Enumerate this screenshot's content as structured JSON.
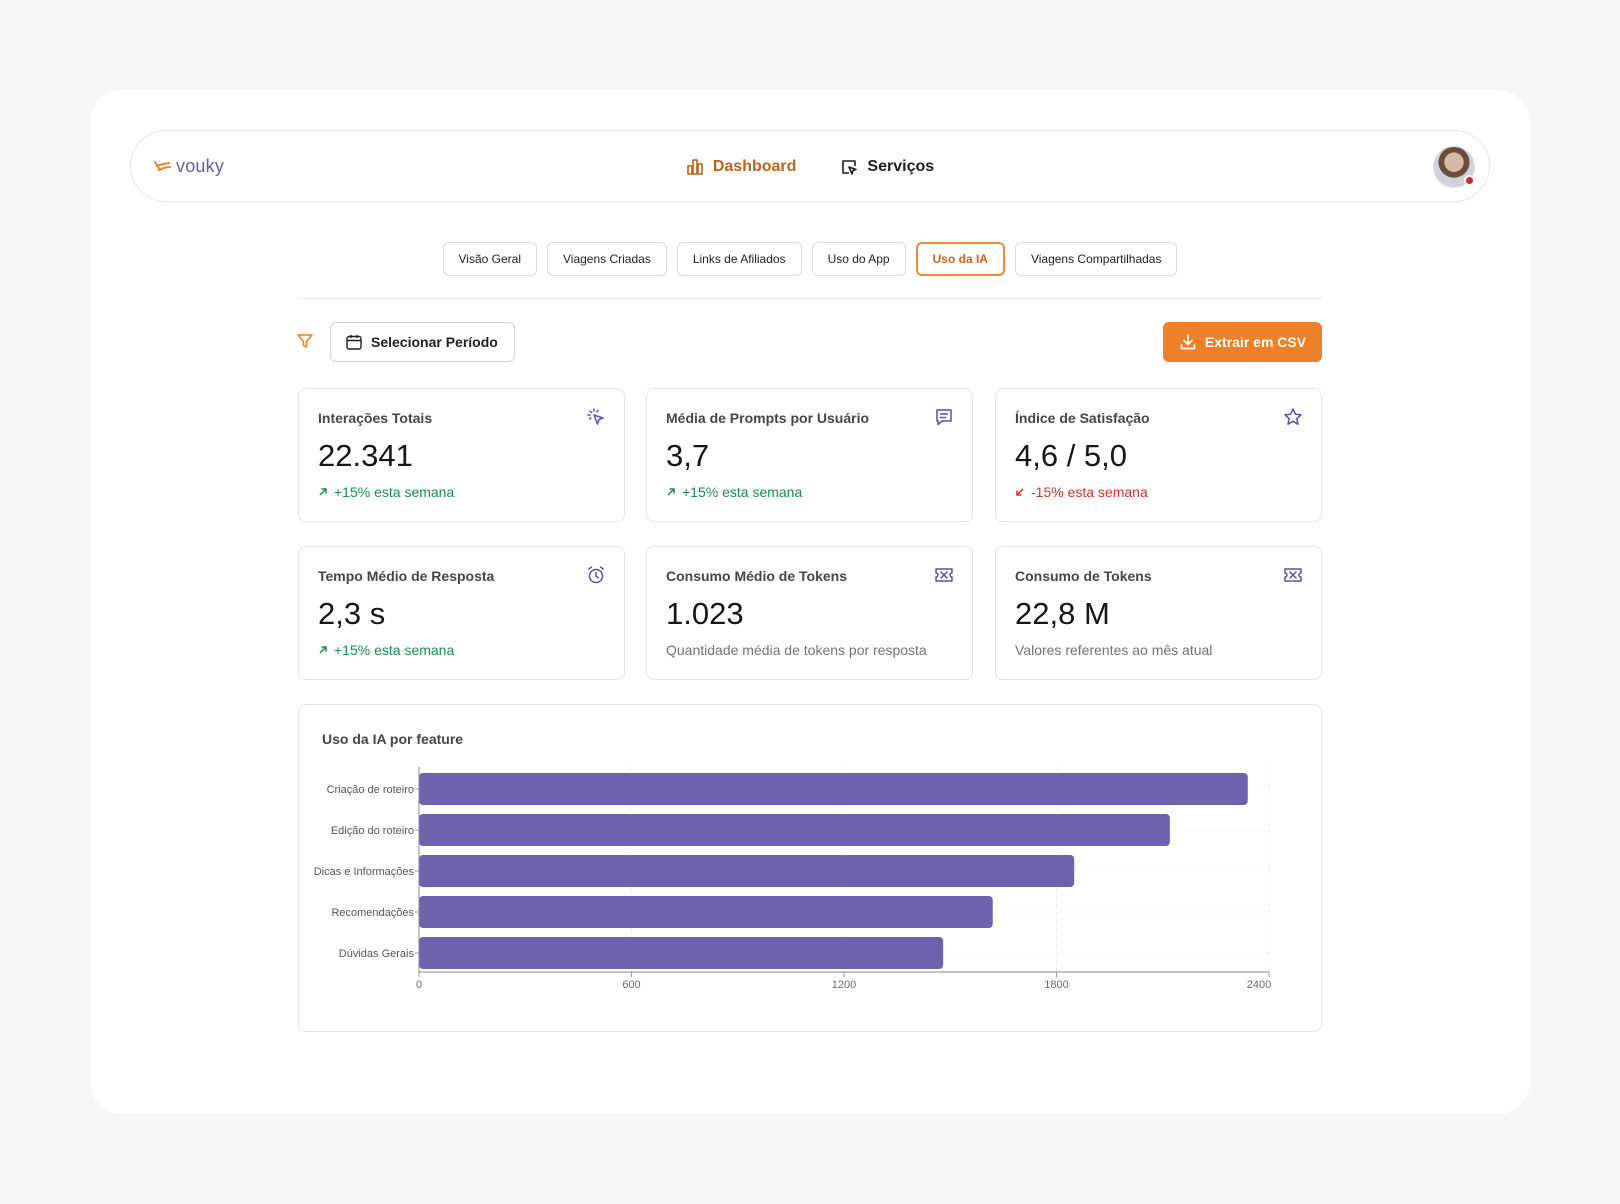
{
  "app": {
    "logo_text": "vouky"
  },
  "nav": {
    "items": [
      {
        "label": "Dashboard",
        "active": true
      },
      {
        "label": "Serviços",
        "active": false
      }
    ]
  },
  "tabs": [
    {
      "label": "Visão Geral",
      "active": false
    },
    {
      "label": "Viagens Criadas",
      "active": false
    },
    {
      "label": "Links de Afiliados",
      "active": false
    },
    {
      "label": "Uso do App",
      "active": false
    },
    {
      "label": "Uso da IA",
      "active": true
    },
    {
      "label": "Viagens Compartilhadas",
      "active": false
    }
  ],
  "toolbar": {
    "period_label": "Selecionar Período",
    "csv_label": "Extrair em CSV"
  },
  "cards": [
    {
      "title": "Interações Totais",
      "icon": "cursor-click-icon",
      "value": "22.341",
      "foot": "+15% esta semana",
      "trend": "up"
    },
    {
      "title": "Média de Prompts por Usuário",
      "icon": "message-square-icon",
      "value": "3,7",
      "foot": "+15% esta semana",
      "trend": "up"
    },
    {
      "title": "Índice de Satisfação",
      "icon": "star-icon",
      "value": "4,6 / 5,0",
      "foot": "-15% esta semana",
      "trend": "down"
    },
    {
      "title": "Tempo Médio de Resposta",
      "icon": "alarm-clock-icon",
      "value": "2,3 s",
      "foot": "+15% esta semana",
      "trend": "up"
    },
    {
      "title": "Consumo Médio de Tokens",
      "icon": "ticket-icon",
      "value": "1.023",
      "foot": "Quantidade média de tokens por resposta",
      "trend": "neutral"
    },
    {
      "title": "Consumo de Tokens",
      "icon": "ticket-icon",
      "value": "22,8 M",
      "foot": "Valores referentes ao mês atual",
      "trend": "neutral"
    }
  ],
  "colors": {
    "accent": "#ee7f2b",
    "bar": "#6e62ad",
    "up": "#1e8a4c",
    "down": "#d2322d",
    "brand": "#6a5ba9"
  },
  "chart_data": {
    "type": "bar",
    "orientation": "horizontal",
    "title": "Uso da IA por feature",
    "categories": [
      "Criação de roteiro",
      "Edição do roteiro",
      "Dicas e Informações",
      "Recomendações",
      "Dúvidas Gerais"
    ],
    "values": [
      2340,
      2120,
      1850,
      1620,
      1480
    ],
    "xlim": [
      0,
      2400
    ],
    "xticks": [
      "0",
      "600",
      "1200",
      "1800",
      "2400"
    ],
    "grid": true
  }
}
